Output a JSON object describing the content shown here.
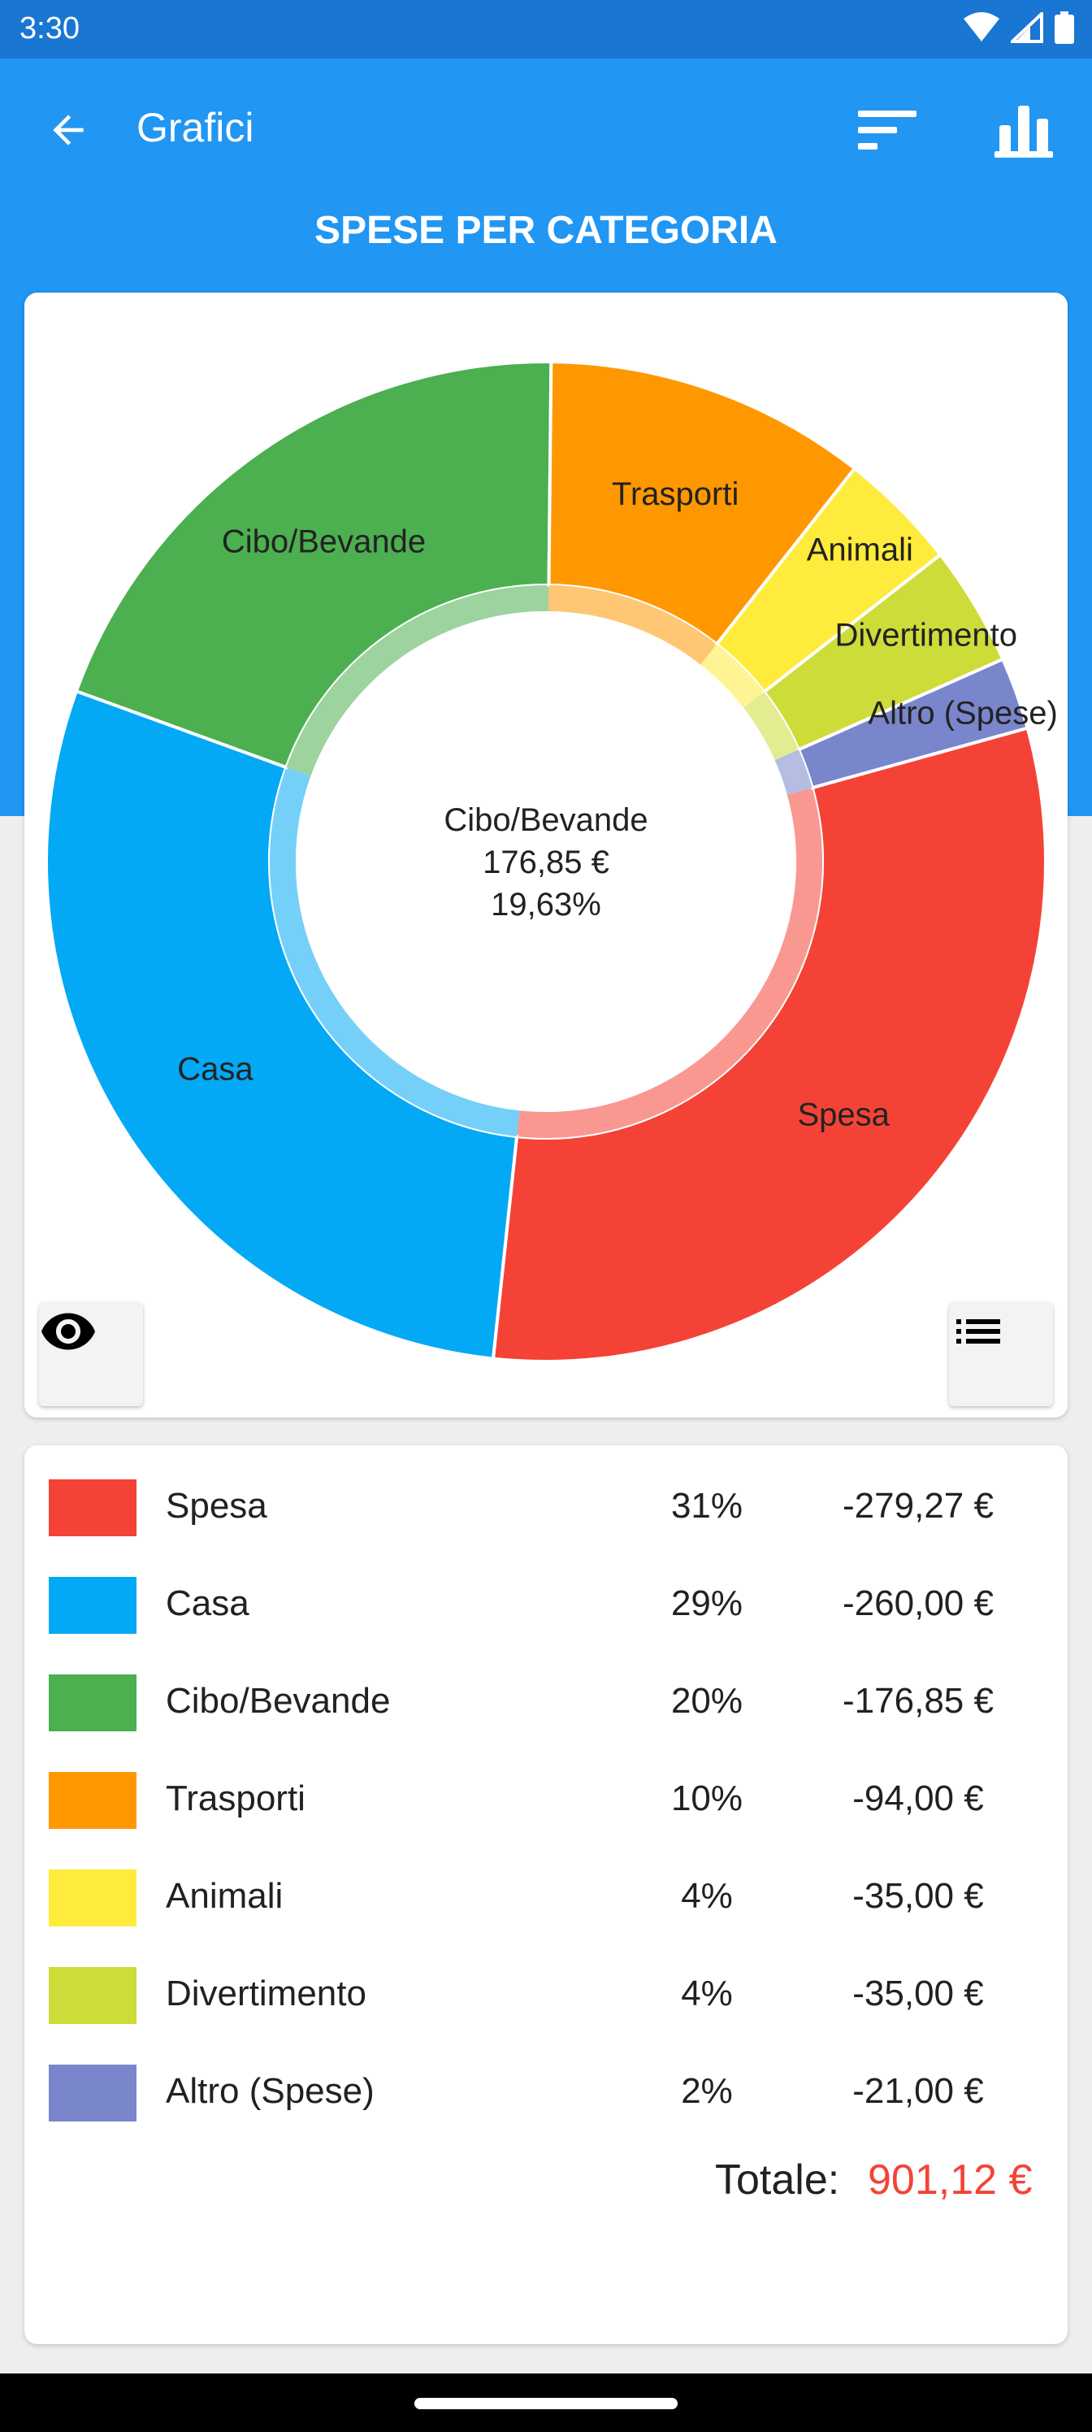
{
  "status_bar": {
    "time": "3:30"
  },
  "app_bar": {
    "title": "Grafici"
  },
  "section_title": "SPESE PER CATEGORIA",
  "chart_data": {
    "type": "pie",
    "center_label": {
      "name": "Cibo/Bevande",
      "amount": "176,85 €",
      "percent": "19,63%"
    },
    "categories": [
      "Spesa",
      "Casa",
      "Cibo/Bevande",
      "Trasporti",
      "Animali",
      "Divertimento",
      "Altro (Spese)"
    ],
    "values": [
      279.27,
      260.0,
      176.85,
      94.0,
      35.0,
      35.0,
      21.0
    ],
    "colors": [
      "#F44336",
      "#03A9F4",
      "#4CAF50",
      "#FF9800",
      "#FFEB3B",
      "#CDDC39",
      "#7986CB"
    ],
    "highlighted": "Cibo/Bevande"
  },
  "legend": {
    "rows": [
      {
        "name": "Spesa",
        "percent": "31%",
        "amount": "-279,27 €",
        "color": "#F44336"
      },
      {
        "name": "Casa",
        "percent": "29%",
        "amount": "-260,00 €",
        "color": "#03A9F4"
      },
      {
        "name": "Cibo/Bevande",
        "percent": "20%",
        "amount": "-176,85 €",
        "color": "#4CAF50"
      },
      {
        "name": "Trasporti",
        "percent": "10%",
        "amount": "-94,00 €",
        "color": "#FF9800"
      },
      {
        "name": "Animali",
        "percent": "4%",
        "amount": "-35,00 €",
        "color": "#FFEB3B"
      },
      {
        "name": "Divertimento",
        "percent": "4%",
        "amount": "-35,00 €",
        "color": "#CDDC39"
      },
      {
        "name": "Altro (Spese)",
        "percent": "2%",
        "amount": "-21,00 €",
        "color": "#7986CB"
      }
    ],
    "total_label": "Totale:",
    "total_value": "901,12 €"
  }
}
